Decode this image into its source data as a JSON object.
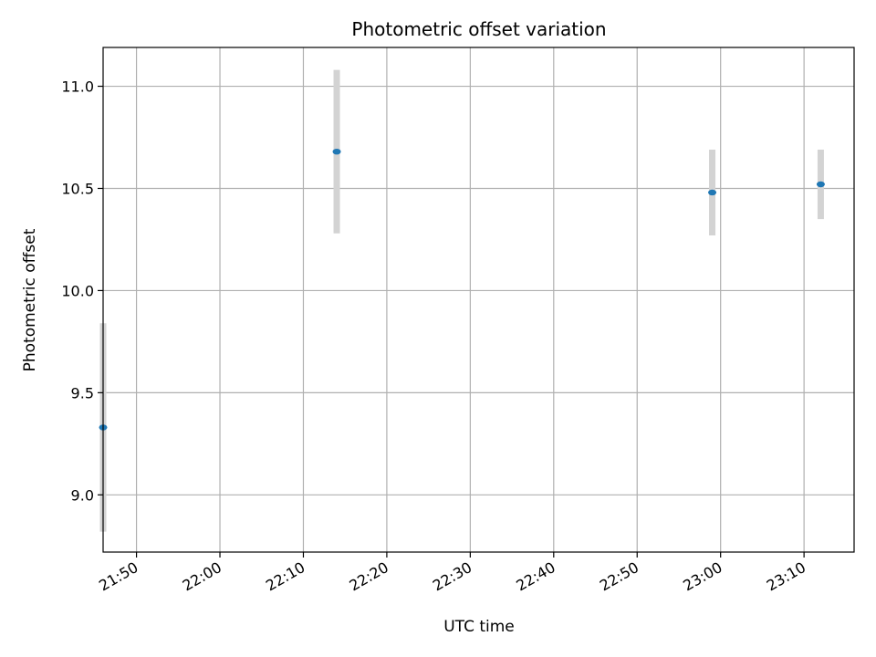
{
  "chart_data": {
    "type": "scatter",
    "title": "Photometric offset variation",
    "xlabel": "UTC time",
    "ylabel": "Photometric offset",
    "x_ticks": [
      "21:50",
      "22:00",
      "22:10",
      "22:20",
      "22:30",
      "22:40",
      "22:50",
      "23:00",
      "23:10"
    ],
    "xlim": [
      "21:46",
      "23:16"
    ],
    "ylim": [
      8.72,
      11.19
    ],
    "y_ticks": [
      "9.0",
      "9.5",
      "10.0",
      "10.5",
      "11.0"
    ],
    "grid": true,
    "series": [
      {
        "x": [
          "21:46",
          "22:14",
          "22:59",
          "23:12"
        ],
        "y": [
          9.33,
          10.68,
          10.48,
          10.52
        ],
        "y_err": [
          0.51,
          0.4,
          0.21,
          0.17
        ]
      }
    ],
    "colors": {
      "point": "#1f77b4",
      "errorbar": "#d3d3d3",
      "grid": "#b0b0b0"
    }
  }
}
